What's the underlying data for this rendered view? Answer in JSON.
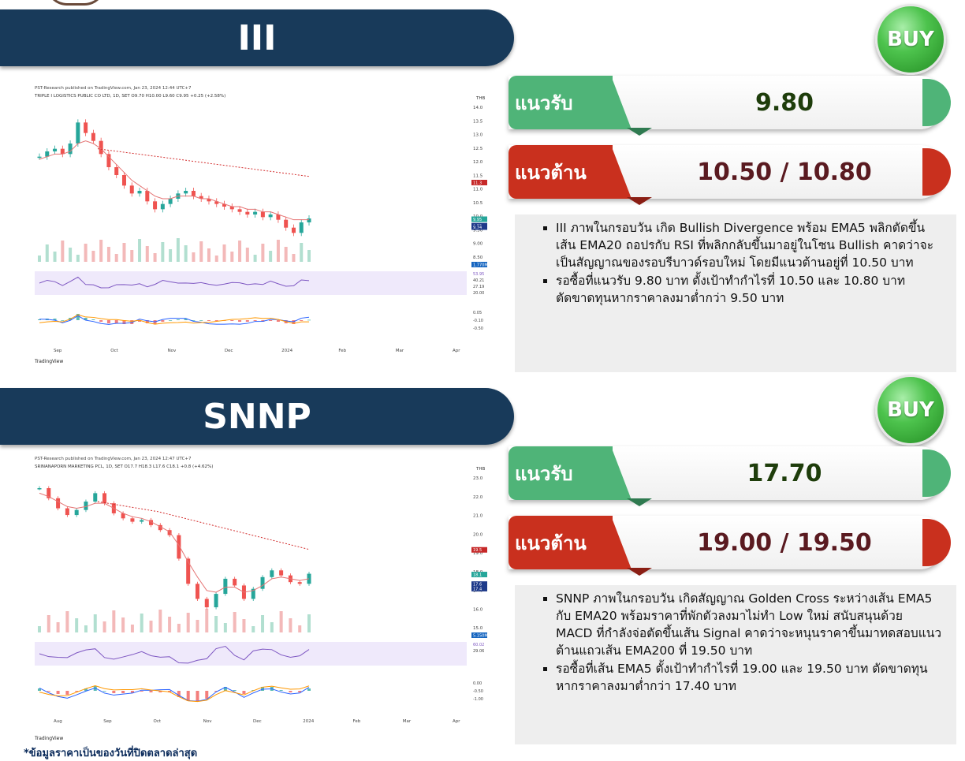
{
  "section1": {
    "ticker": "III",
    "signal": "BUY",
    "support_label": "แนวรับ",
    "support_value": "9.80",
    "resistance_label": "แนวต้าน",
    "resistance_value": "10.50 / 10.80",
    "bullets": [
      "III ภาพในกรอบวัน เกิด Bullish Divergence พร้อม EMA5 พลิกตัดขึ้นเส้น EMA20 ถอปรกับ RSI ที่พลิกกลับขึ้นมาอยู่ในโซน Bullish คาดว่าจะเป็นสัญญาณของรอบรีบาวด์รอบใหม่ โดยมีแนวต้านอยู่ที่ 10.50 บาท",
      "รอซื้อที่แนวรับ 9.80 บาท ตั้งเป้าทำกำไรที่ 10.50 และ 10.80 บาท ตัดขาดทุนหากราคาลงมาต่ำกว่า 9.50 บาท"
    ]
  },
  "section2": {
    "ticker": "SNNP",
    "signal": "BUY",
    "support_label": "แนวรับ",
    "support_value": "17.70",
    "resistance_label": "แนวต้าน",
    "resistance_value": "19.00 / 19.50",
    "bullets": [
      "SNNP ภาพในกรอบวัน เกิดสัญญาณ Golden Cross ระหว่างเส้น EMA5 กับ EMA20 พร้อมราคาที่พักตัวลงมาไม่ทำ Low ใหม่ สนับสนุนด้วย MACD ที่กำลังจ่อตัดขึ้นเส้น Signal คาดว่าจะหนุนราคาขึ้นมาทดสอบแนวต้านแถวเส้น EMA200 ที่ 19.50 บาท",
      "รอซื้อที่เส้น EMA5 ตั้งเป้าทำกำไรที่ 19.00 และ 19.50 บาท ตัดขาดทุนหากราคาลงมาต่ำกว่า 17.40 บาท"
    ]
  },
  "chart_data": [
    {
      "type": "line",
      "header": "PST-Research published on TradingView.com, Jan 23, 2024 12:44 UTC+7",
      "symbol_line": "TRIPLE I LOGISTICS PUBLIC CO LTD, 1D, SET  O9.70 H10.00 L9.60 C9.95 +0.25 (+2.58%)",
      "currency": "THB",
      "x_labels": [
        "Sep",
        "Oct",
        "Nov",
        "Dec",
        "2024",
        "Feb",
        "Mar",
        "Apr"
      ],
      "y_ticks": [
        "14.0",
        "13.5",
        "13.0",
        "12.5",
        "12.0",
        "11.5",
        "11.0",
        "10.5",
        "10.0",
        "9.50",
        "9.00",
        "8.50"
      ],
      "ylim": [
        8.3,
        14.3
      ],
      "series": [
        {
          "name": "Close",
          "values": [
            12.3,
            12.5,
            12.6,
            12.4,
            12.8,
            13.6,
            13.2,
            12.9,
            12.4,
            11.9,
            11.6,
            11.2,
            10.9,
            11.0,
            10.6,
            10.3,
            10.5,
            10.7,
            10.9,
            11.0,
            10.8,
            10.7,
            10.6,
            10.5,
            10.4,
            10.3,
            10.2,
            10.1,
            10.2,
            10.0,
            10.1,
            9.9,
            9.6,
            9.4,
            9.8,
            9.95
          ]
        },
        {
          "name": "EMA",
          "values": [
            12.2,
            12.3,
            12.4,
            12.4,
            12.5,
            12.8,
            12.9,
            12.8,
            12.6,
            12.3,
            12.0,
            11.7,
            11.4,
            11.2,
            11.0,
            10.8,
            10.7,
            10.7,
            10.8,
            10.8,
            10.8,
            10.7,
            10.7,
            10.6,
            10.5,
            10.4,
            10.4,
            10.3,
            10.3,
            10.2,
            10.2,
            10.1,
            10.0,
            9.9,
            9.9,
            9.9
          ]
        },
        {
          "name": "EMA200",
          "values": [
            12.6,
            12.55,
            12.5,
            12.45,
            12.4,
            12.35,
            12.3,
            12.25,
            12.2,
            12.15,
            12.1,
            12.05,
            12.0,
            11.95,
            11.9,
            11.85,
            11.8,
            11.75,
            11.7,
            11.65,
            11.6,
            11.55
          ]
        }
      ],
      "price_tags": [
        "11.3",
        "9.95",
        "9.75",
        "9.74",
        "1.770M"
      ],
      "rsi_ticks": [
        "53.95",
        "40.21",
        "27.19",
        "20.00"
      ],
      "macd_ticks": [
        "0.05",
        "-0.10",
        "-0.50"
      ],
      "footer": "TradingView"
    },
    {
      "type": "line",
      "header": "PST-Research published on TradingView.com, Jan 23, 2024 12:47 UTC+7",
      "symbol_line": "SRINANAPORN MARKETING PCL, 1D, SET  O17.7 H18.3 L17.6 C18.1 +0.8 (+4.62%)",
      "currency": "THB",
      "x_labels": [
        "Aug",
        "Sep",
        "Oct",
        "Nov",
        "Dec",
        "2024",
        "Feb",
        "Mar",
        "Apr"
      ],
      "y_ticks": [
        "23.0",
        "22.0",
        "21.0",
        "20.0",
        "19.0",
        "18.0",
        "17.0",
        "16.0",
        "15.0"
      ],
      "ylim": [
        14.6,
        24.0
      ],
      "series": [
        {
          "name": "Close",
          "values": [
            23.2,
            22.6,
            22.0,
            21.6,
            21.9,
            22.4,
            22.9,
            22.3,
            21.7,
            21.4,
            21.2,
            21.3,
            21.0,
            20.7,
            20.4,
            19.0,
            17.5,
            16.6,
            16.1,
            16.9,
            17.8,
            17.4,
            16.6,
            17.2,
            17.9,
            18.3,
            18.0,
            17.6,
            17.5,
            18.1
          ]
        },
        {
          "name": "EMA",
          "values": [
            22.9,
            22.7,
            22.4,
            22.1,
            22.0,
            22.1,
            22.3,
            22.3,
            22.0,
            21.7,
            21.5,
            21.4,
            21.2,
            20.9,
            20.6,
            19.8,
            18.8,
            17.9,
            17.1,
            17.0,
            17.3,
            17.3,
            17.0,
            17.1,
            17.4,
            17.8,
            17.9,
            17.8,
            17.7,
            17.8
          ]
        },
        {
          "name": "EMA200",
          "values": [
            22.4,
            22.3,
            22.2,
            22.1,
            22.0,
            21.9,
            21.8,
            21.65,
            21.5,
            21.35,
            21.2,
            21.05,
            20.9,
            20.75,
            20.6,
            20.45,
            20.3,
            20.15,
            20.0,
            19.85,
            19.7,
            19.55
          ]
        }
      ],
      "price_tags": [
        "19.5",
        "18.1",
        "17.6",
        "17.4",
        "5.150M"
      ],
      "rsi_ticks": [
        "60.02",
        "29.06"
      ],
      "macd_ticks": [
        "0.00",
        "-0.50",
        "-1.00"
      ],
      "footer": "TradingView"
    }
  ],
  "footnote": "*ข้อมูลราคาเป็นของวันที่ปิดตลาดล่าสุด"
}
